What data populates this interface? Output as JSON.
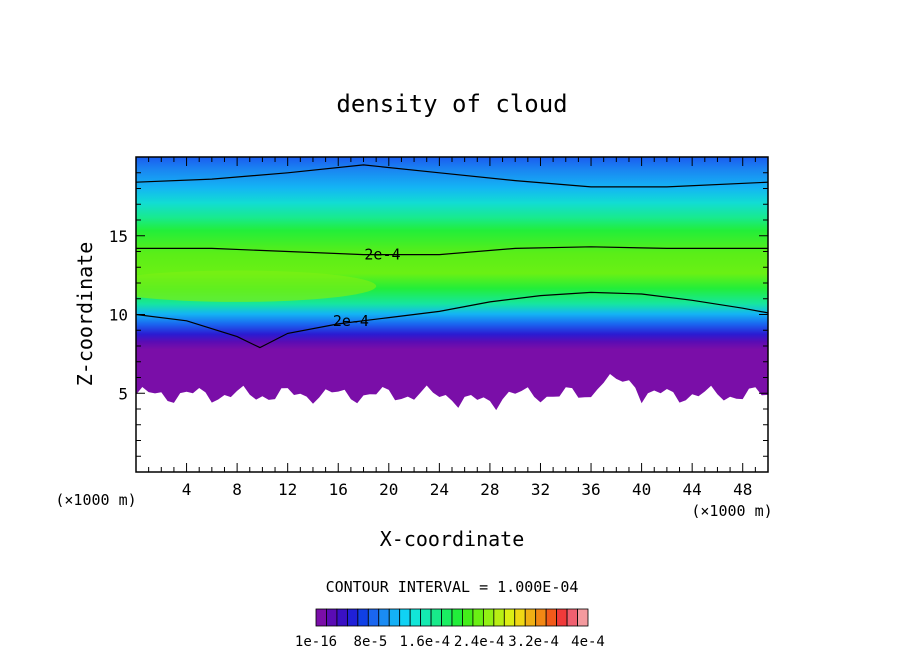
{
  "chart_data": {
    "type": "heatmap",
    "title": "density of cloud",
    "xlabel": "X-coordinate",
    "ylabel": "Z-coordinate",
    "x_unit": "(×1000 m)",
    "xlim": [
      0,
      50
    ],
    "ylim": [
      0,
      20
    ],
    "x_ticks": [
      4,
      8,
      12,
      16,
      20,
      24,
      28,
      32,
      36,
      40,
      44,
      48
    ],
    "y_ticks": [
      5,
      10,
      15
    ],
    "contour_interval_label": "CONTOUR INTERVAL = 1.000E-04",
    "contour_labels": [
      {
        "text": "2e-4",
        "x": 19.5,
        "z": 13.8
      },
      {
        "text": "2e-4",
        "x": 17.0,
        "z": 9.6
      }
    ],
    "contours": [
      {
        "level": "top",
        "x": [
          0,
          6,
          12,
          18,
          24,
          30,
          36,
          42,
          50
        ],
        "z": [
          18.4,
          18.6,
          19.0,
          19.5,
          19.0,
          18.5,
          18.1,
          18.1,
          18.4
        ]
      },
      {
        "level": "2e-4",
        "x": [
          0,
          6,
          12,
          18,
          24,
          30,
          36,
          42,
          50
        ],
        "z": [
          14.2,
          14.2,
          14.0,
          13.8,
          13.8,
          14.2,
          14.3,
          14.2,
          14.2
        ]
      },
      {
        "level": "2e-4",
        "x": [
          0,
          4,
          8,
          9.8,
          12,
          16,
          20,
          24,
          28,
          32,
          36,
          40,
          44,
          48,
          50
        ],
        "z": [
          10.0,
          9.6,
          8.6,
          7.9,
          8.8,
          9.4,
          9.8,
          10.2,
          10.8,
          11.2,
          11.4,
          11.3,
          10.9,
          10.4,
          10.1
        ]
      }
    ],
    "colorbar": {
      "colors": [
        "#7a0ea8",
        "#5a0cb4",
        "#3a10c4",
        "#2020d8",
        "#1040e6",
        "#1a66f0",
        "#1a8cf4",
        "#14b0f6",
        "#10d2f4",
        "#12e6d8",
        "#14eab0",
        "#18ea8a",
        "#1aee62",
        "#22ee3a",
        "#44ee1a",
        "#6af014",
        "#92f014",
        "#b8ee14",
        "#dcee14",
        "#f0d814",
        "#f0b014",
        "#f28814",
        "#f25a1a",
        "#f03a3a",
        "#f06070",
        "#f49a9e"
      ],
      "tick_labels": [
        "1e-16",
        "8e-5",
        "1.6e-4",
        "2.4e-4",
        "3.2e-4",
        "4e-4"
      ]
    }
  }
}
